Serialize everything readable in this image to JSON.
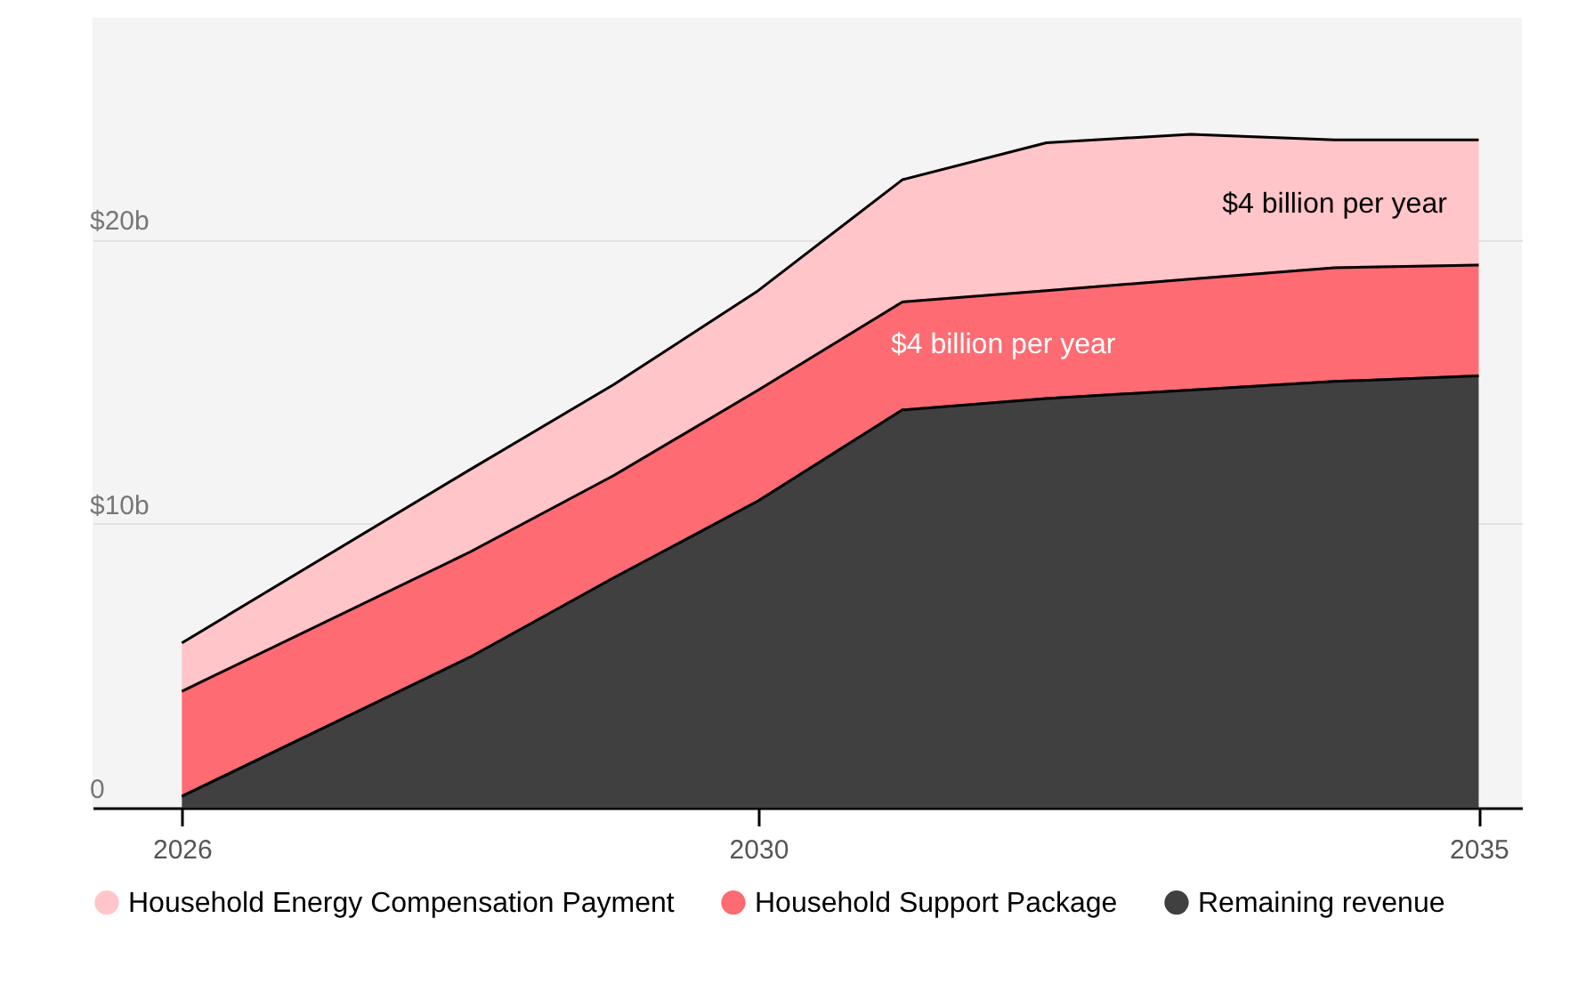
{
  "chart_data": {
    "type": "area",
    "stacked": true,
    "x": [
      2026,
      2028,
      2029,
      2030,
      2031,
      2032,
      2033,
      2034,
      2035
    ],
    "series": [
      {
        "name": "Remaining revenue",
        "color": "#404040",
        "values": [
          0.4,
          5.3,
          8.1,
          10.8,
          14.0,
          14.4,
          14.7,
          15.0,
          15.2
        ]
      },
      {
        "name": "Household Support Package",
        "color": "#ff6b72",
        "values": [
          3.7,
          3.7,
          3.6,
          3.9,
          3.8,
          3.8,
          3.9,
          4.0,
          3.9
        ]
      },
      {
        "name": "Household Energy Compensation Payment",
        "color": "#ffc5c8",
        "values": [
          1.7,
          2.9,
          3.2,
          3.5,
          4.3,
          5.2,
          5.1,
          4.5,
          4.4
        ]
      }
    ],
    "xlim": [
      2025.38,
      2035.3
    ],
    "xticks": [
      2026,
      2030,
      2035
    ],
    "ylim": [
      0,
      27.8
    ],
    "yticks": [
      0,
      {
        "value": 10,
        "label": "$10b"
      },
      {
        "value": 20,
        "label": "$20b"
      }
    ],
    "grid": "y",
    "legend": "bottom",
    "annotations": [
      "$4 billion per year",
      "$4 billion per year"
    ]
  }
}
